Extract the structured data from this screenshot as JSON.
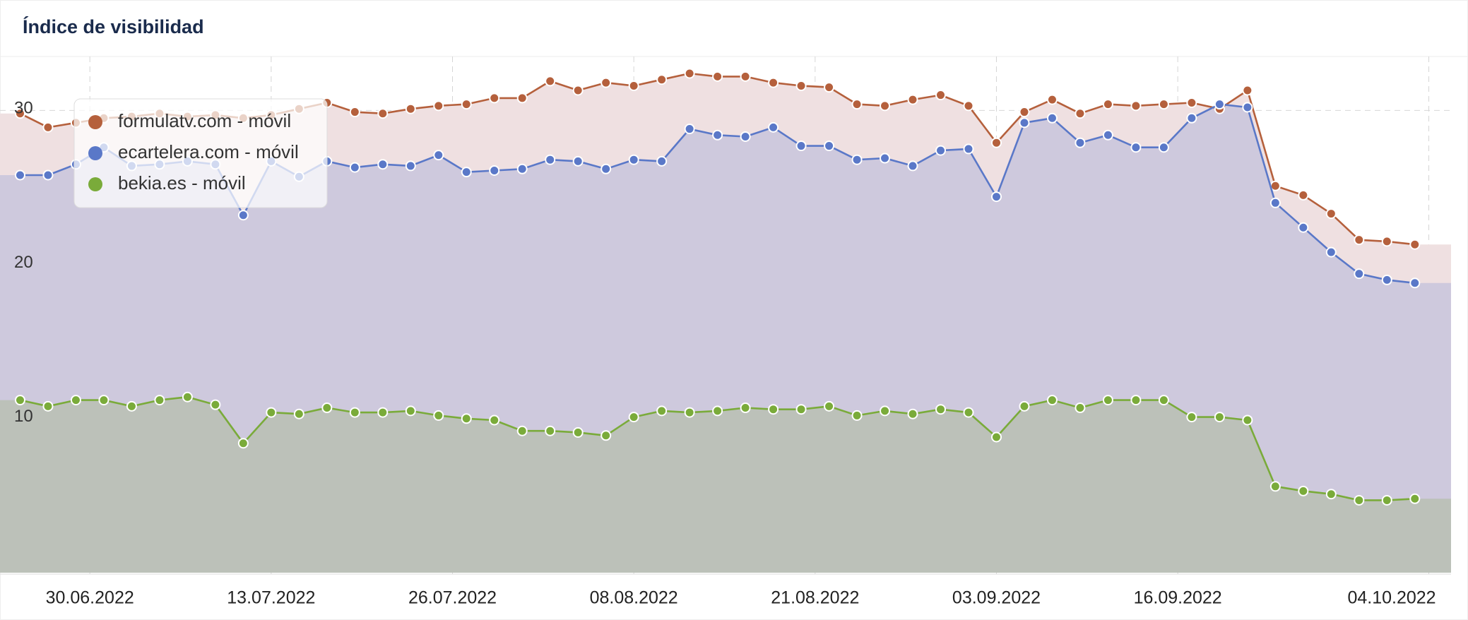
{
  "chart_data": {
    "type": "area",
    "title": "Índice de visibilidad",
    "x": [
      "25.06.2022",
      "27.06.2022",
      "29.06.2022",
      "01.07.2022",
      "03.07.2022",
      "05.07.2022",
      "07.07.2022",
      "09.07.2022",
      "11.07.2022",
      "13.07.2022",
      "15.07.2022",
      "17.07.2022",
      "19.07.2022",
      "21.07.2022",
      "23.07.2022",
      "25.07.2022",
      "27.07.2022",
      "29.07.2022",
      "31.07.2022",
      "02.08.2022",
      "04.08.2022",
      "06.08.2022",
      "08.08.2022",
      "10.08.2022",
      "12.08.2022",
      "14.08.2022",
      "16.08.2022",
      "18.08.2022",
      "20.08.2022",
      "22.08.2022",
      "24.08.2022",
      "26.08.2022",
      "28.08.2022",
      "30.08.2022",
      "01.09.2022",
      "03.09.2022",
      "05.09.2022",
      "07.09.2022",
      "09.09.2022",
      "11.09.2022",
      "13.09.2022",
      "15.09.2022",
      "17.09.2022",
      "19.09.2022",
      "21.09.2022",
      "23.09.2022",
      "25.09.2022",
      "27.09.2022",
      "29.09.2022",
      "01.10.2022",
      "03.10.2022"
    ],
    "series": [
      {
        "name": "formulatv.com - móvil",
        "color": "#b5603c",
        "fill": "#efe0e1",
        "values": [
          29.8,
          28.9,
          29.2,
          29.5,
          29.6,
          29.8,
          29.6,
          29.7,
          29.5,
          29.7,
          30.1,
          30.5,
          29.9,
          29.8,
          30.1,
          30.3,
          30.4,
          30.8,
          30.8,
          31.9,
          31.3,
          31.8,
          31.6,
          32.0,
          32.4,
          32.2,
          32.2,
          31.8,
          31.6,
          31.5,
          30.4,
          30.3,
          30.7,
          31.0,
          30.3,
          27.9,
          29.9,
          30.7,
          29.8,
          30.4,
          30.3,
          30.4,
          30.5,
          30.1,
          31.3,
          25.1,
          24.5,
          23.3,
          21.6,
          21.5,
          21.3
        ]
      },
      {
        "name": "ecartelera.com - móvil",
        "color": "#5a78c8",
        "fill": "#cec9dd",
        "values": [
          25.8,
          25.8,
          26.5,
          27.6,
          26.4,
          26.5,
          26.7,
          26.5,
          23.2,
          26.7,
          25.7,
          26.7,
          26.3,
          26.5,
          26.4,
          27.1,
          26.0,
          26.1,
          26.2,
          26.8,
          26.7,
          26.2,
          26.8,
          26.7,
          28.8,
          28.4,
          28.3,
          28.9,
          27.7,
          27.7,
          26.8,
          26.9,
          26.4,
          27.4,
          27.5,
          24.4,
          29.2,
          29.5,
          27.9,
          28.4,
          27.6,
          27.6,
          29.5,
          30.4,
          30.2,
          24.0,
          22.4,
          20.8,
          19.4,
          19.0,
          18.8
        ]
      },
      {
        "name": "bekia.es - móvil",
        "color": "#7aab3a",
        "fill": "#bcc1b9",
        "values": [
          11.2,
          10.8,
          11.2,
          11.2,
          10.8,
          11.2,
          11.4,
          10.9,
          8.4,
          10.4,
          10.3,
          10.7,
          10.4,
          10.4,
          10.5,
          10.2,
          10.0,
          9.9,
          9.2,
          9.2,
          9.1,
          8.9,
          10.1,
          10.5,
          10.4,
          10.5,
          10.7,
          10.6,
          10.6,
          10.8,
          10.2,
          10.5,
          10.3,
          10.6,
          10.4,
          8.8,
          10.8,
          11.2,
          10.7,
          11.2,
          11.2,
          11.2,
          10.1,
          10.1,
          9.9,
          5.6,
          5.3,
          5.1,
          4.7,
          4.7,
          4.8
        ]
      }
    ],
    "xlim": [
      "23.06.2022",
      "06.10.2022"
    ],
    "xticks": [
      "30.06.2022",
      "13.07.2022",
      "26.07.2022",
      "08.08.2022",
      "21.08.2022",
      "03.09.2022",
      "16.09.2022",
      "04.10.2022"
    ],
    "ylim": [
      0,
      33.5
    ],
    "yticks": [
      10,
      20,
      30
    ],
    "grid": true,
    "legend": "top-left"
  }
}
